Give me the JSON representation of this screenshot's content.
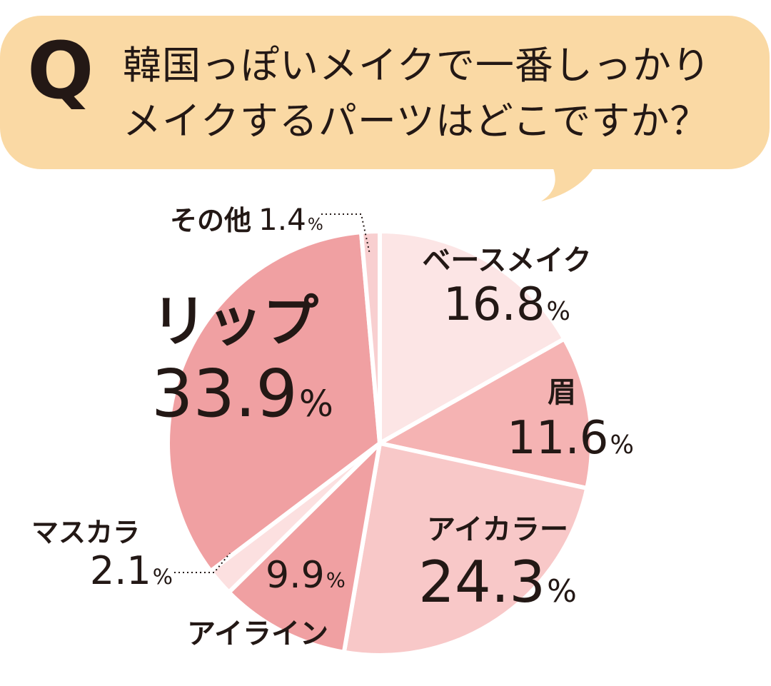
{
  "question": {
    "mark": "Q",
    "line1": "韓国っぽいメイクで一番しっかり",
    "line2": "メイクするパーツはどこですか？"
  },
  "colors": {
    "bubble": "#fad9a4",
    "text": "#231815",
    "lip": "#f0a0a2",
    "base": "#fce5e5",
    "brow": "#f5b3b3",
    "eyecolor": "#f8c8c8",
    "eyeliner": "#f0a0a2",
    "mascara": "#fce0e0",
    "other": "#f8cfd0"
  },
  "percent_symbol": "%",
  "chart_data": {
    "type": "pie",
    "start": "12 o'clock, clockwise",
    "slices": [
      {
        "key": "base",
        "label": "ベースメイク",
        "value": 16.8
      },
      {
        "key": "brow",
        "label": "眉",
        "value": 11.6
      },
      {
        "key": "eyecolor",
        "label": "アイカラー",
        "value": 24.3
      },
      {
        "key": "eyeliner",
        "label": "アイライン",
        "value": 9.9
      },
      {
        "key": "mascara",
        "label": "マスカラ",
        "value": 2.1
      },
      {
        "key": "lip",
        "label": "リップ",
        "value": 33.9
      },
      {
        "key": "other",
        "label": "その他",
        "value": 1.4
      }
    ]
  }
}
